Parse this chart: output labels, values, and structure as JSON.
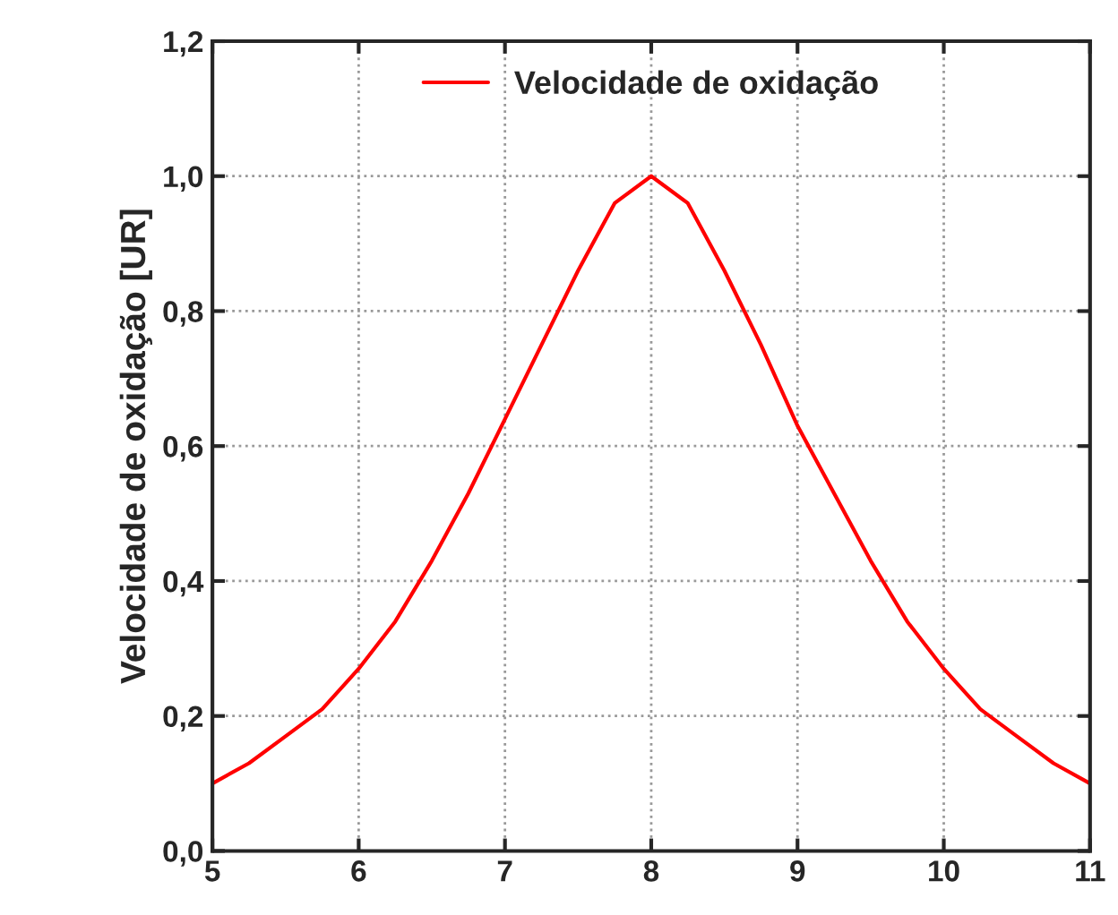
{
  "chart_data": {
    "type": "line",
    "ylabel": "Velocidade de oxidação [UR]",
    "x": [
      5,
      5.25,
      5.5,
      5.75,
      6,
      6.25,
      6.5,
      6.75,
      7,
      7.25,
      7.5,
      7.75,
      8,
      8.25,
      8.5,
      8.75,
      9,
      9.25,
      9.5,
      9.75,
      10,
      10.25,
      10.5,
      10.75,
      11
    ],
    "series": [
      {
        "name": "Velocidade de oxidação",
        "color": "#ff0000",
        "values": [
          0.1,
          0.13,
          0.17,
          0.21,
          0.27,
          0.34,
          0.43,
          0.53,
          0.64,
          0.75,
          0.86,
          0.96,
          1.0,
          0.96,
          0.86,
          0.75,
          0.63,
          0.53,
          0.43,
          0.34,
          0.27,
          0.21,
          0.17,
          0.13,
          0.1
        ]
      }
    ],
    "xlim": [
      5,
      11
    ],
    "xticks": [
      5,
      6,
      7,
      8,
      9,
      10,
      11
    ],
    "ylim": [
      0,
      1.2
    ],
    "yticks": [
      {
        "value": 0,
        "label": "0,0"
      },
      {
        "value": 0.2,
        "label": "0,2"
      },
      {
        "value": 0.4,
        "label": "0,4"
      },
      {
        "value": 0.6,
        "label": "0,6"
      },
      {
        "value": 0.8,
        "label": "0,8"
      },
      {
        "value": 1.0,
        "label": "1,0"
      },
      {
        "value": 1.2,
        "label": "1,2"
      }
    ],
    "grid": true,
    "legend": "top",
    "line_style": "solid",
    "marker": "none"
  }
}
